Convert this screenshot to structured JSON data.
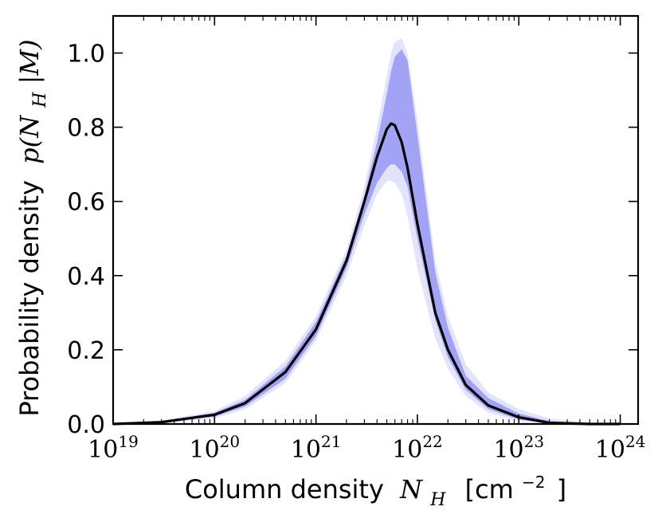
{
  "chart_data": {
    "type": "area",
    "xscale": "log",
    "xlim": [
      1e+19,
      1.5e+24
    ],
    "ylim": [
      0.0,
      1.1
    ],
    "grid": false,
    "xlabel": "Column density N_H [cm^-2]",
    "xlabel_text": "Column density",
    "xlabel_symbol": "N",
    "xlabel_subscript": "H",
    "xlabel_unit_prefix": "[cm",
    "xlabel_unit_exp": "−2",
    "xlabel_unit_suffix": "]",
    "ylabel": "Probability density p(N_H|M)",
    "ylabel_text": "Probability density",
    "ylabel_math_prefix": "p(N",
    "ylabel_math_sub": "H",
    "ylabel_math_suffix": "|M)",
    "x_ticks": [
      {
        "base": "10",
        "exp": "19",
        "value": 1e+19
      },
      {
        "base": "10",
        "exp": "20",
        "value": 1e+20
      },
      {
        "base": "10",
        "exp": "21",
        "value": 1e+21
      },
      {
        "base": "10",
        "exp": "22",
        "value": 1e+22
      },
      {
        "base": "10",
        "exp": "23",
        "value": 1e+23
      },
      {
        "base": "10",
        "exp": "24",
        "value": 1e+24
      }
    ],
    "y_ticks": [
      {
        "label": "0.0",
        "value": 0.0
      },
      {
        "label": "0.2",
        "value": 0.2
      },
      {
        "label": "0.4",
        "value": 0.4
      },
      {
        "label": "0.6",
        "value": 0.6
      },
      {
        "label": "0.8",
        "value": 0.8
      },
      {
        "label": "1.0",
        "value": 1.0
      }
    ],
    "colors": {
      "outer_band": "#e3e3fb",
      "inner_band": "#a3a3f6",
      "median_line": "#000000"
    },
    "x": [
      1e+19,
      3e+19,
      1e+20,
      2e+20,
      5e+20,
      1e+21,
      2e+21,
      3e+21,
      4e+21,
      5e+21,
      5.5e+21,
      6e+21,
      7e+21,
      8e+21,
      1e+22,
      1.5e+22,
      2e+22,
      3e+22,
      5e+22,
      1e+23,
      2e+23,
      5e+23,
      1e+24
    ],
    "series": [
      {
        "role": "outer_band",
        "lower": [
          0,
          0.003,
          0.015,
          0.04,
          0.11,
          0.225,
          0.4,
          0.535,
          0.62,
          0.655,
          0.655,
          0.65,
          0.62,
          0.56,
          0.42,
          0.23,
          0.15,
          0.075,
          0.03,
          0.008,
          0,
          0,
          0
        ],
        "upper": [
          0.002,
          0.009,
          0.035,
          0.075,
          0.17,
          0.29,
          0.47,
          0.64,
          0.8,
          0.94,
          1.0,
          1.03,
          1.04,
          1.0,
          0.82,
          0.44,
          0.29,
          0.16,
          0.085,
          0.04,
          0.015,
          0.003,
          0.0005
        ]
      },
      {
        "role": "inner_band",
        "lower": [
          0,
          0.004,
          0.02,
          0.047,
          0.122,
          0.237,
          0.42,
          0.565,
          0.65,
          0.69,
          0.7,
          0.7,
          0.68,
          0.64,
          0.5,
          0.28,
          0.18,
          0.092,
          0.04,
          0.012,
          0.002,
          0,
          0
        ],
        "upper": [
          0.001,
          0.007,
          0.03,
          0.065,
          0.155,
          0.275,
          0.455,
          0.615,
          0.76,
          0.89,
          0.95,
          0.99,
          1.01,
          0.98,
          0.78,
          0.41,
          0.26,
          0.13,
          0.07,
          0.028,
          0.008,
          0.001,
          0
        ]
      },
      {
        "role": "median_line",
        "values": [
          0,
          0.005,
          0.025,
          0.056,
          0.14,
          0.255,
          0.44,
          0.6,
          0.72,
          0.795,
          0.81,
          0.805,
          0.76,
          0.69,
          0.54,
          0.3,
          0.2,
          0.105,
          0.05,
          0.018,
          0.003,
          0,
          0
        ]
      }
    ]
  }
}
